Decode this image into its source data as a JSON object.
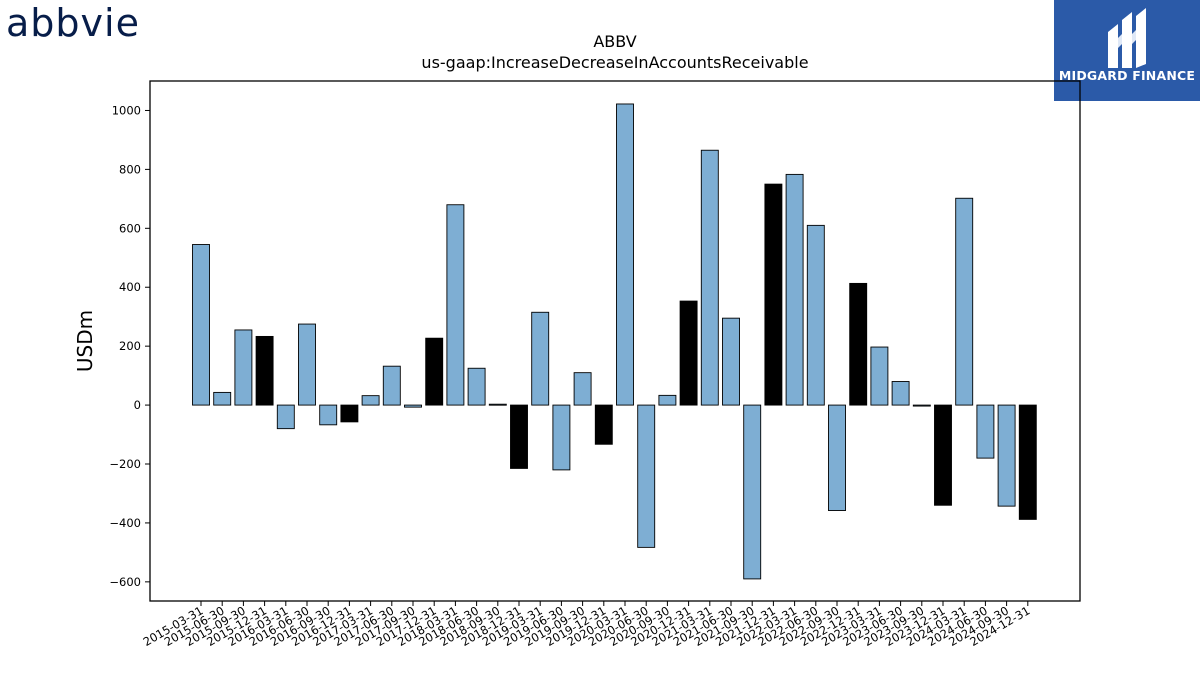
{
  "brand": {
    "company_logo_text": "abbvie",
    "publisher_name": "MIDGARD FINANCE"
  },
  "chart_data": {
    "type": "bar",
    "title": "ABBV",
    "subtitle": "us-gaap:IncreaseDecreaseInAccountsReceivable",
    "xlabel": "",
    "ylabel": "USDm",
    "ylim": [
      -665,
      1100
    ],
    "yticks": [
      -600,
      -400,
      -200,
      0,
      200,
      400,
      600,
      800,
      1000
    ],
    "grid": false,
    "colors": {
      "quarter": "#7eaed3",
      "year_end": "#000000",
      "edge": "#000000"
    },
    "categories": [
      "2015-03-31",
      "2015-06-30",
      "2015-09-30",
      "2015-12-31",
      "2016-03-31",
      "2016-06-30",
      "2016-09-30",
      "2016-12-31",
      "2017-03-31",
      "2017-06-30",
      "2017-09-30",
      "2017-12-31",
      "2018-03-31",
      "2018-06-30",
      "2018-09-30",
      "2018-12-31",
      "2019-03-31",
      "2019-06-30",
      "2019-09-30",
      "2019-12-31",
      "2020-03-31",
      "2020-06-30",
      "2020-09-30",
      "2020-12-31",
      "2021-03-31",
      "2021-06-30",
      "2021-09-30",
      "2021-12-31",
      "2022-03-31",
      "2022-06-30",
      "2022-09-30",
      "2022-12-31",
      "2023-03-31",
      "2023-06-30",
      "2023-09-30",
      "2023-12-31",
      "2024-03-31",
      "2024-06-30",
      "2024-09-30",
      "2024-12-31"
    ],
    "values": [
      545,
      43,
      255,
      233,
      -80,
      275,
      -67,
      -57,
      32,
      132,
      -7,
      227,
      680,
      125,
      3,
      -215,
      315,
      -220,
      110,
      -133,
      1022,
      -483,
      33,
      353,
      865,
      295,
      -590,
      750,
      783,
      610,
      -358,
      413,
      197,
      80,
      -2,
      -340,
      702,
      -180,
      -343,
      -388
    ],
    "year_end": [
      false,
      false,
      false,
      true,
      false,
      false,
      false,
      true,
      false,
      false,
      false,
      true,
      false,
      false,
      false,
      true,
      false,
      false,
      false,
      true,
      false,
      false,
      false,
      true,
      false,
      false,
      false,
      true,
      false,
      false,
      false,
      true,
      false,
      false,
      false,
      true,
      false,
      false,
      false,
      true
    ]
  }
}
